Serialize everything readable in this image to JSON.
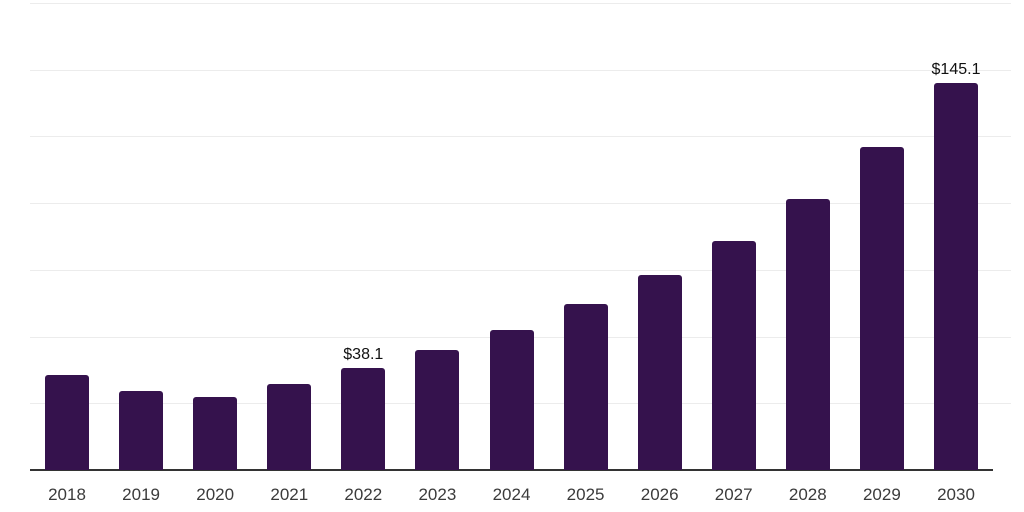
{
  "chart_data": {
    "type": "bar",
    "categories": [
      "2018",
      "2019",
      "2020",
      "2021",
      "2022",
      "2023",
      "2024",
      "2025",
      "2026",
      "2027",
      "2028",
      "2029",
      "2030"
    ],
    "values": [
      35.6,
      29.7,
      27.3,
      32.3,
      38.1,
      44.9,
      52.3,
      62.0,
      73.0,
      85.8,
      101.4,
      121.0,
      145.1
    ],
    "data_labels": [
      "",
      "",
      "",
      "",
      "$38.1",
      "",
      "",
      "",
      "",
      "",
      "",
      "",
      "$145.1"
    ],
    "value_prefix": "$",
    "ylim": [
      0,
      175
    ],
    "y_grid_step": 25,
    "grid": true,
    "legend": false,
    "y_axis_tick_labels_visible": false,
    "colors": {
      "bar": "#35124D",
      "grid": "#ececec",
      "axis": "#333333",
      "tick_text": "#3b3b3b",
      "label_text": "#111111",
      "background": "#ffffff"
    }
  }
}
